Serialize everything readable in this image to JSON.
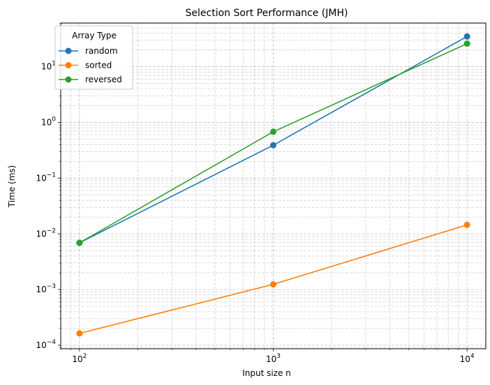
{
  "chart_data": {
    "type": "line",
    "title": "Selection Sort Performance (JMH)",
    "xlabel": "Input size n",
    "ylabel": "Time (ms)",
    "xscale": "log",
    "yscale": "log",
    "xlim": [
      80,
      12500
    ],
    "ylim": [
      8.65e-05,
      61
    ],
    "x": [
      100,
      1000,
      10000
    ],
    "x_tick_labels": [
      {
        "base": "10",
        "exp": "2"
      },
      {
        "base": "10",
        "exp": "3"
      },
      {
        "base": "10",
        "exp": "4"
      }
    ],
    "y_tick_labels": [
      {
        "base": "10",
        "exp": "−4"
      },
      {
        "base": "10",
        "exp": "−3"
      },
      {
        "base": "10",
        "exp": "−2"
      },
      {
        "base": "10",
        "exp": "−1"
      },
      {
        "base": "10",
        "exp": "0"
      },
      {
        "base": "10",
        "exp": "1"
      }
    ],
    "grid": true,
    "legend": {
      "title": "Array Type",
      "position": "top-left"
    },
    "series": [
      {
        "name": "random",
        "color": "#1f77b4",
        "values": [
          0.0069,
          0.39,
          35
        ]
      },
      {
        "name": "sorted",
        "color": "#ff7f0e",
        "values": [
          0.000163,
          0.00124,
          0.0145
        ]
      },
      {
        "name": "reversed",
        "color": "#2ca02c",
        "values": [
          0.0069,
          0.68,
          26
        ]
      }
    ]
  }
}
